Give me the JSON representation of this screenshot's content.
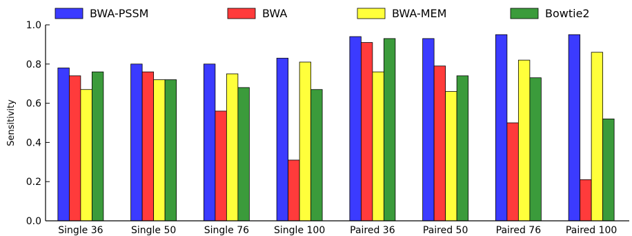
{
  "chart_data": {
    "type": "bar",
    "categories": [
      "Single 36",
      "Single 50",
      "Single 76",
      "Single 100",
      "Paired 36",
      "Paired 50",
      "Paired 76",
      "Paired 100"
    ],
    "series": [
      {
        "name": "BWA-PSSM",
        "color": "#3b3bff",
        "values": [
          0.78,
          0.8,
          0.8,
          0.83,
          0.94,
          0.93,
          0.95,
          0.95
        ]
      },
      {
        "name": "BWA",
        "color": "#ff3b3b",
        "values": [
          0.74,
          0.76,
          0.56,
          0.31,
          0.91,
          0.79,
          0.5,
          0.21
        ]
      },
      {
        "name": "BWA-MEM",
        "color": "#ffff3b",
        "values": [
          0.67,
          0.72,
          0.75,
          0.81,
          0.76,
          0.66,
          0.82,
          0.86
        ]
      },
      {
        "name": "Bowtie2",
        "color": "#3b9b3b",
        "values": [
          0.76,
          0.72,
          0.68,
          0.67,
          0.93,
          0.74,
          0.73,
          0.52
        ]
      }
    ],
    "ylabel": "Sensitivity",
    "ylim": [
      0.0,
      1.0
    ],
    "yticks": [
      "0.0",
      "0.2",
      "0.4",
      "0.6",
      "0.8",
      "1.0"
    ],
    "legend_position": "top",
    "grid": false
  }
}
